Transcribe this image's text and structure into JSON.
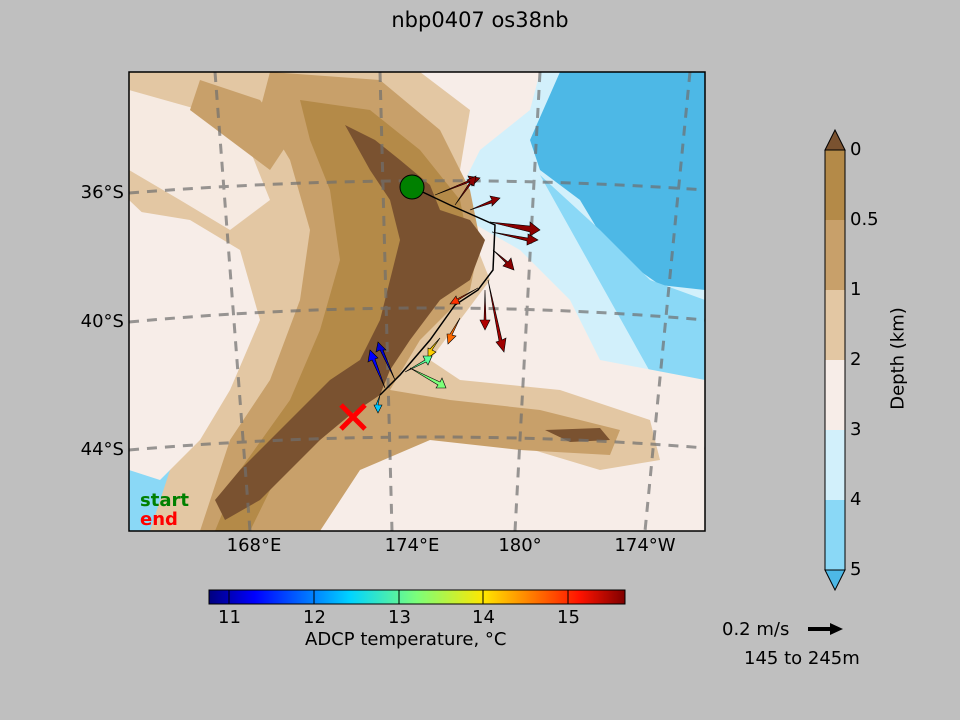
{
  "title": "nbp0407 os38nb",
  "map": {
    "lat_labels": [
      "36°S",
      "40°S",
      "44°S"
    ],
    "lon_labels": [
      "168°E",
      "174°E",
      "180°",
      "174°W"
    ],
    "legend_start": "start",
    "legend_end": "end",
    "colors": {
      "start": "#008000",
      "end": "#ff0000"
    }
  },
  "depth_colorbar": {
    "label": "Depth (km)",
    "ticks": [
      "0",
      "0.5",
      "1",
      "2",
      "3",
      "4",
      "5"
    ],
    "colors": [
      "#7a5230",
      "#b48a48",
      "#c8a06a",
      "#e3c7a3",
      "#f7ede8",
      "#d2f0fb",
      "#8ad8f6",
      "#4db8e6"
    ]
  },
  "temp_colorbar": {
    "label": "ADCP temperature, °C",
    "ticks": [
      "11",
      "12",
      "13",
      "14",
      "15"
    ],
    "range": [
      10.75,
      15.65
    ]
  },
  "vector_key": {
    "speed_label": "0.2 m/s",
    "depth_range": "145 to 245m"
  }
}
